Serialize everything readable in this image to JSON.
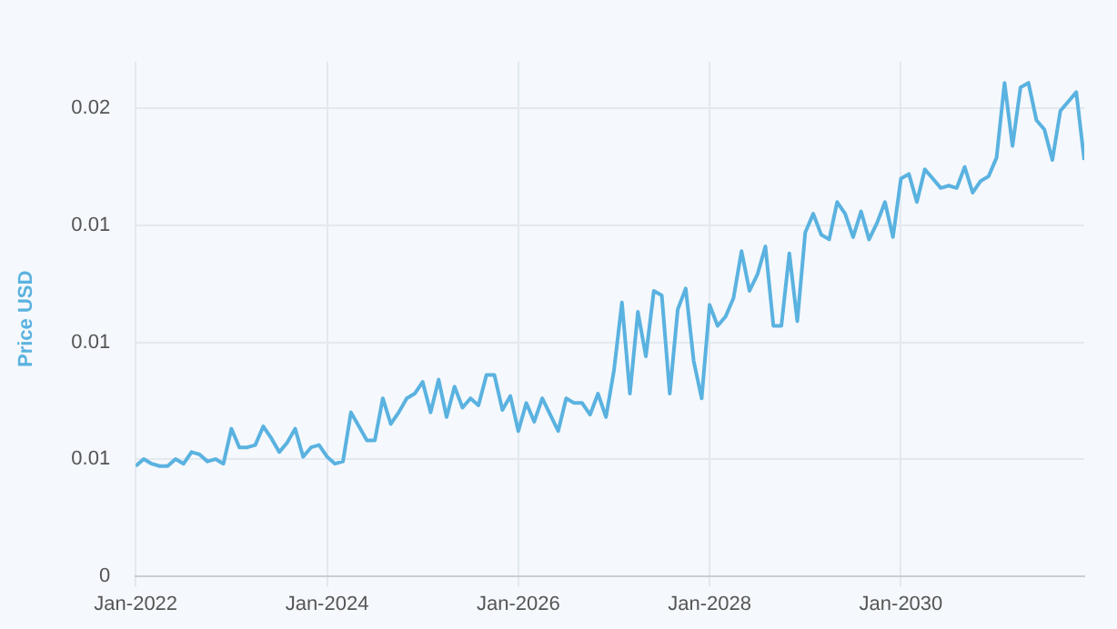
{
  "chart_data": {
    "type": "line",
    "ylabel": "Price USD",
    "x": [
      "2022-01",
      "2022-02",
      "2022-03",
      "2022-04",
      "2022-05",
      "2022-06",
      "2022-07",
      "2022-08",
      "2022-09",
      "2022-10",
      "2022-11",
      "2022-12",
      "2023-01",
      "2023-02",
      "2023-03",
      "2023-04",
      "2023-05",
      "2023-06",
      "2023-07",
      "2023-08",
      "2023-09",
      "2023-10",
      "2023-11",
      "2023-12",
      "2024-01",
      "2024-02",
      "2024-03",
      "2024-04",
      "2024-05",
      "2024-06",
      "2024-07",
      "2024-08",
      "2024-09",
      "2024-10",
      "2024-11",
      "2024-12",
      "2025-01",
      "2025-02",
      "2025-03",
      "2025-04",
      "2025-05",
      "2025-06",
      "2025-07",
      "2025-08",
      "2025-09",
      "2025-10",
      "2025-11",
      "2025-12",
      "2026-01",
      "2026-02",
      "2026-03",
      "2026-04",
      "2026-05",
      "2026-06",
      "2026-07",
      "2026-08",
      "2026-09",
      "2026-10",
      "2026-11",
      "2026-12",
      "2027-01",
      "2027-02",
      "2027-03",
      "2027-04",
      "2027-05",
      "2027-06",
      "2027-07",
      "2027-08",
      "2027-09",
      "2027-10",
      "2027-11",
      "2027-12",
      "2028-01",
      "2028-02",
      "2028-03",
      "2028-04",
      "2028-05",
      "2028-06",
      "2028-07",
      "2028-08",
      "2028-09",
      "2028-10",
      "2028-11",
      "2028-12",
      "2029-01",
      "2029-02",
      "2029-03",
      "2029-04",
      "2029-05",
      "2029-06",
      "2029-07",
      "2029-08",
      "2029-09",
      "2029-10",
      "2029-11",
      "2029-12",
      "2030-01",
      "2030-02",
      "2030-03",
      "2030-04",
      "2030-05",
      "2030-06",
      "2030-07",
      "2030-08",
      "2030-09",
      "2030-10",
      "2030-11",
      "2030-12",
      "2031-01",
      "2031-02",
      "2031-03",
      "2031-04",
      "2031-05",
      "2031-06",
      "2031-07",
      "2031-08",
      "2031-09",
      "2031-10",
      "2031-11",
      "2031-12"
    ],
    "series": [
      {
        "color": "#5ab2e0",
        "values": [
          0.0047,
          0.005,
          0.0048,
          0.0047,
          0.0047,
          0.005,
          0.0048,
          0.0053,
          0.0052,
          0.0049,
          0.005,
          0.0048,
          0.0063,
          0.0055,
          0.0055,
          0.0056,
          0.0064,
          0.0059,
          0.0053,
          0.0057,
          0.0063,
          0.0051,
          0.0055,
          0.0056,
          0.0051,
          0.0048,
          0.0049,
          0.007,
          0.0064,
          0.0058,
          0.0058,
          0.0076,
          0.0065,
          0.007,
          0.0076,
          0.0078,
          0.0083,
          0.007,
          0.0084,
          0.0068,
          0.0081,
          0.0072,
          0.0076,
          0.0073,
          0.0086,
          0.0086,
          0.0071,
          0.0077,
          0.0062,
          0.0074,
          0.0066,
          0.0076,
          0.0069,
          0.0062,
          0.0076,
          0.0074,
          0.0074,
          0.0069,
          0.0078,
          0.0068,
          0.0088,
          0.0117,
          0.0078,
          0.0113,
          0.0094,
          0.0122,
          0.012,
          0.0078,
          0.0114,
          0.0123,
          0.0092,
          0.0076,
          0.0116,
          0.0107,
          0.0111,
          0.0119,
          0.0139,
          0.0122,
          0.0129,
          0.0141,
          0.0107,
          0.0107,
          0.0138,
          0.0109,
          0.0147,
          0.0155,
          0.0146,
          0.0144,
          0.016,
          0.0155,
          0.0145,
          0.0156,
          0.0144,
          0.0151,
          0.016,
          0.0145,
          0.017,
          0.0172,
          0.016,
          0.0174,
          0.017,
          0.0166,
          0.0167,
          0.0166,
          0.0175,
          0.0164,
          0.0169,
          0.0171,
          0.0179,
          0.0211,
          0.0184,
          0.0209,
          0.0211,
          0.0195,
          0.0191,
          0.0178,
          0.0199,
          0.0203,
          0.0207,
          0.0178
        ]
      }
    ],
    "xlim": [
      "2022-01",
      "2031-12"
    ],
    "xticks": [
      {
        "value": "2022-01",
        "label": "Jan-2022"
      },
      {
        "value": "2024-01",
        "label": "Jan-2024"
      },
      {
        "value": "2026-01",
        "label": "Jan-2026"
      },
      {
        "value": "2028-01",
        "label": "Jan-2028"
      },
      {
        "value": "2030-01",
        "label": "Jan-2030"
      }
    ],
    "ylim": [
      0,
      0.022
    ],
    "yticks": [
      0,
      {
        "value": 0.005,
        "label": "0.01"
      },
      {
        "value": 0.01,
        "label": "0.01"
      },
      {
        "value": 0.015,
        "label": "0.01"
      },
      {
        "value": 0.02,
        "label": "0.02"
      }
    ],
    "grid": true,
    "legend": false,
    "marker": "none",
    "line_style": "solid"
  }
}
